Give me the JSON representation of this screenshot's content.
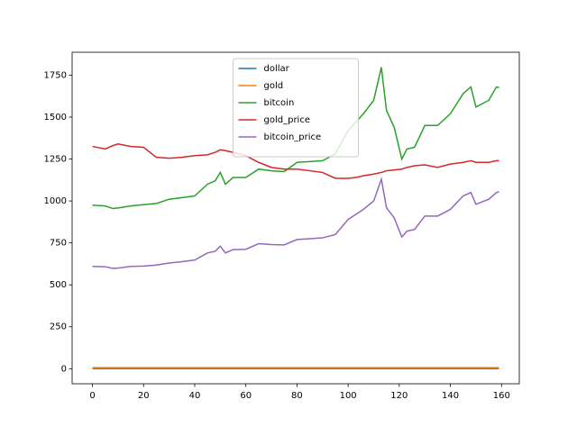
{
  "chart_data": {
    "type": "line",
    "x": [
      0,
      5,
      8,
      10,
      15,
      20,
      25,
      30,
      35,
      40,
      45,
      48,
      50,
      52,
      55,
      60,
      65,
      70,
      75,
      80,
      85,
      90,
      95,
      100,
      103,
      106,
      110,
      113,
      115,
      118,
      121,
      123,
      126,
      130,
      135,
      140,
      145,
      148,
      150,
      155,
      158,
      159
    ],
    "series": [
      {
        "name": "dollar",
        "color": "#1f77b4",
        "values": [
          1,
          1,
          1,
          1,
          1,
          1,
          1,
          1,
          1,
          1,
          1,
          1,
          1,
          1,
          1,
          1,
          1,
          1,
          1,
          1,
          1,
          1,
          1,
          1,
          1,
          1,
          1,
          1,
          1,
          1,
          1,
          1,
          1,
          1,
          1,
          1,
          1,
          1,
          1,
          1,
          1,
          1
        ]
      },
      {
        "name": "gold",
        "color": "#ff7f0e",
        "values": [
          6,
          6,
          6,
          6,
          6,
          6,
          6,
          6,
          6,
          6,
          6,
          6,
          6,
          6,
          6,
          6,
          6,
          6,
          6,
          6,
          6,
          6,
          6,
          6,
          6,
          6,
          6,
          6,
          6,
          6,
          6,
          6,
          6,
          6,
          6,
          6,
          6,
          6,
          6,
          6,
          6,
          6
        ]
      },
      {
        "name": "bitcoin",
        "color": "#2ca02c",
        "values": [
          975,
          970,
          955,
          958,
          970,
          978,
          985,
          1010,
          1020,
          1030,
          1100,
          1120,
          1170,
          1100,
          1140,
          1140,
          1190,
          1180,
          1175,
          1230,
          1235,
          1240,
          1280,
          1420,
          1470,
          1520,
          1600,
          1797,
          1540,
          1440,
          1250,
          1310,
          1320,
          1450,
          1450,
          1520,
          1640,
          1680,
          1560,
          1600,
          1680,
          1675
        ]
      },
      {
        "name": "gold_price",
        "color": "#d62728",
        "values": [
          1325,
          1310,
          1330,
          1340,
          1325,
          1320,
          1260,
          1255,
          1260,
          1270,
          1275,
          1290,
          1305,
          1300,
          1290,
          1270,
          1230,
          1200,
          1190,
          1190,
          1180,
          1170,
          1135,
          1135,
          1140,
          1150,
          1160,
          1170,
          1180,
          1185,
          1190,
          1200,
          1210,
          1215,
          1200,
          1220,
          1230,
          1240,
          1230,
          1230,
          1240,
          1240
        ]
      },
      {
        "name": "bitcoin_price",
        "color": "#9467bd",
        "values": [
          610,
          608,
          598,
          600,
          610,
          612,
          618,
          630,
          638,
          648,
          690,
          700,
          730,
          690,
          710,
          712,
          745,
          740,
          738,
          770,
          775,
          780,
          800,
          890,
          920,
          950,
          1000,
          1130,
          960,
          900,
          785,
          820,
          830,
          910,
          910,
          950,
          1030,
          1050,
          980,
          1010,
          1050,
          1055
        ]
      }
    ],
    "xlim": [
      -7.95,
      166.95
    ],
    "xticks": [
      0,
      20,
      40,
      60,
      80,
      100,
      120,
      140,
      160
    ],
    "ylim": [
      -89.8,
      1886.6
    ],
    "yticks": [
      0,
      250,
      500,
      750,
      1000,
      1250,
      1500,
      1750
    ],
    "legend": "upper center"
  }
}
